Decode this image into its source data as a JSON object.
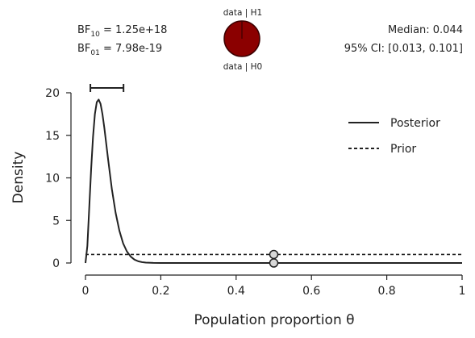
{
  "header": {
    "bf10_base": "BF",
    "bf10_sub": "10",
    "bf10_value": " = 1.25e+18",
    "bf01_base": "BF",
    "bf01_sub": "01",
    "bf01_value": " = 7.98e-19",
    "median_text": "Median: 0.044",
    "ci_text": "95% CI: [0.013, 0.101]",
    "pie_top_label": "data | H1",
    "pie_bottom_label": "data | H0"
  },
  "chart_data": {
    "type": "line",
    "xlabel": "Population proportion θ",
    "ylabel": "Density",
    "xlim": [
      0,
      1
    ],
    "ylim": [
      0,
      20
    ],
    "xticks": [
      0,
      0.2,
      0.4,
      0.6,
      0.8,
      1
    ],
    "xtick_labels": [
      "0",
      "0.2",
      "0.4",
      "0.6",
      "0.8",
      "1"
    ],
    "yticks": [
      0,
      5,
      10,
      15,
      20
    ],
    "ytick_labels": [
      "0",
      "5",
      "10",
      "15",
      "20"
    ],
    "grid": false,
    "legend_position": "top-right",
    "credible_interval": [
      0.013,
      0.101
    ],
    "median": 0.044,
    "point_null": 0.5,
    "point_null_densities": {
      "prior": 1.0,
      "posterior": 0.0
    },
    "series": [
      {
        "name": "Posterior",
        "style": "solid",
        "x": [
          0,
          0.005,
          0.01,
          0.015,
          0.02,
          0.025,
          0.03,
          0.035,
          0.04,
          0.045,
          0.05,
          0.06,
          0.07,
          0.08,
          0.09,
          0.1,
          0.11,
          0.12,
          0.13,
          0.14,
          0.15,
          0.16,
          0.18,
          0.2,
          0.3,
          0.4,
          0.5,
          0.6,
          0.7,
          0.8,
          0.9,
          1.0
        ],
        "y": [
          0,
          2.0,
          6.5,
          11.0,
          14.8,
          17.5,
          18.9,
          19.2,
          18.7,
          17.5,
          15.9,
          12.2,
          8.7,
          5.9,
          3.8,
          2.3,
          1.35,
          0.75,
          0.4,
          0.2,
          0.1,
          0.05,
          0.01,
          0,
          0,
          0,
          0,
          0,
          0,
          0,
          0,
          0
        ]
      },
      {
        "name": "Prior",
        "style": "dashed",
        "x": [
          0,
          1
        ],
        "y": [
          1,
          1
        ]
      }
    ],
    "pie": {
      "top_label": "data | H1",
      "bottom_label": "data | H0",
      "proportion_h1": 1.0,
      "colors": {
        "h1": "#8b0000",
        "h0": "#ffffff"
      }
    }
  }
}
